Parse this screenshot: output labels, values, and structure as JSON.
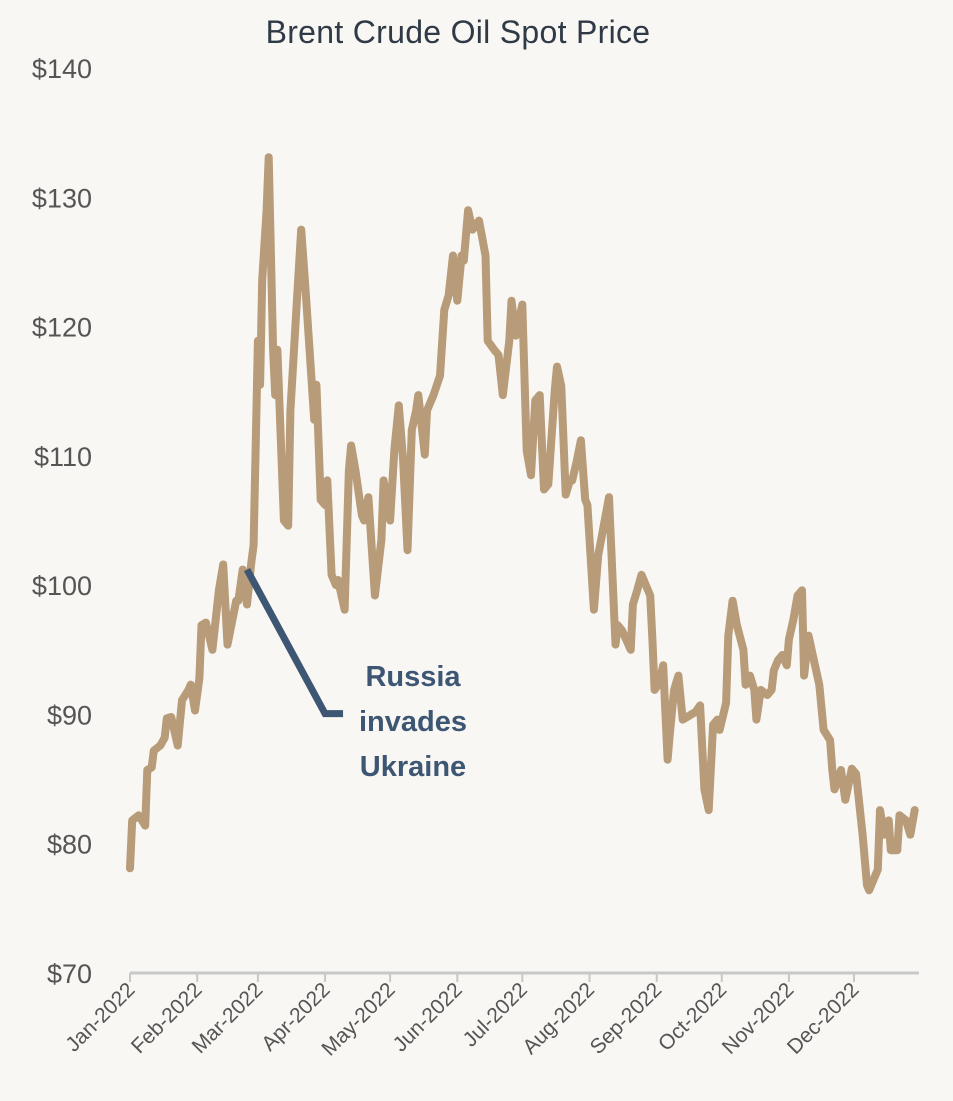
{
  "chart_data": {
    "type": "line",
    "title": "Brent Crude Oil Spot Price",
    "xlabel": "",
    "ylabel": "",
    "ylim": [
      70,
      140
    ],
    "xlim": [
      "2022-01-01",
      "2022-12-31"
    ],
    "grid": false,
    "y_ticks": [
      "$70",
      "$80",
      "$90",
      "$100",
      "$110",
      "$120",
      "$130",
      "$140"
    ],
    "y_tick_values": [
      70,
      80,
      90,
      100,
      110,
      120,
      130,
      140
    ],
    "x_ticks": [
      "Jan-2022",
      "Feb-2022",
      "Mar-2022",
      "Apr-2022",
      "May-2022",
      "Jun-2022",
      "Jul-2022",
      "Aug-2022",
      "Sep-2022",
      "Oct-2022",
      "Nov-2022",
      "Dec-2022"
    ],
    "x_tick_dates": [
      "2022-01-01",
      "2022-02-01",
      "2022-03-01",
      "2022-04-01",
      "2022-05-01",
      "2022-06-01",
      "2022-07-01",
      "2022-08-01",
      "2022-09-01",
      "2022-10-01",
      "2022-11-01",
      "2022-12-01"
    ],
    "line_color": "#b89b78",
    "annotation_color": "#3d5673",
    "annotation": {
      "text_lines": [
        "Russia",
        "invades",
        "Ukraine"
      ],
      "date": "2022-02-24",
      "value": 101.2
    },
    "series": [
      {
        "x": [
          "2022-01-01",
          "2022-01-02",
          "2022-01-05",
          "2022-01-08",
          "2022-01-09",
          "2022-01-11",
          "2022-01-12",
          "2022-01-15",
          "2022-01-17",
          "2022-01-18",
          "2022-01-20",
          "2022-01-23",
          "2022-01-25",
          "2022-01-28",
          "2022-01-29",
          "2022-01-31",
          "2022-02-02",
          "2022-02-03",
          "2022-02-05",
          "2022-02-08",
          "2022-02-11",
          "2022-02-13",
          "2022-02-15",
          "2022-02-19",
          "2022-02-20",
          "2022-02-22",
          "2022-02-24",
          "2022-02-26",
          "2022-02-27",
          "2022-03-01",
          "2022-03-02",
          "2022-03-03",
          "2022-03-05",
          "2022-03-06",
          "2022-03-08",
          "2022-03-09",
          "2022-03-10",
          "2022-03-13",
          "2022-03-15",
          "2022-03-16",
          "2022-03-19",
          "2022-03-21",
          "2022-03-23",
          "2022-03-27",
          "2022-03-28",
          "2022-03-30",
          "2022-04-01",
          "2022-04-02",
          "2022-04-04",
          "2022-04-06",
          "2022-04-07",
          "2022-04-10",
          "2022-04-12",
          "2022-04-13",
          "2022-04-15",
          "2022-04-18",
          "2022-04-19",
          "2022-04-21",
          "2022-04-24",
          "2022-04-27",
          "2022-04-28",
          "2022-05-01",
          "2022-05-03",
          "2022-05-05",
          "2022-05-07",
          "2022-05-09",
          "2022-05-11",
          "2022-05-13",
          "2022-05-14",
          "2022-05-17",
          "2022-05-18",
          "2022-05-21",
          "2022-05-24",
          "2022-05-26",
          "2022-05-28",
          "2022-05-30",
          "2022-06-01",
          "2022-06-03",
          "2022-06-04",
          "2022-06-06",
          "2022-06-08",
          "2022-06-11",
          "2022-06-14",
          "2022-06-15",
          "2022-06-18",
          "2022-06-20",
          "2022-06-22",
          "2022-06-25",
          "2022-06-26",
          "2022-06-28",
          "2022-07-01",
          "2022-07-03",
          "2022-07-05",
          "2022-07-07",
          "2022-07-09",
          "2022-07-11",
          "2022-07-13",
          "2022-07-16",
          "2022-07-17",
          "2022-07-19",
          "2022-07-21",
          "2022-07-23",
          "2022-07-24",
          "2022-07-26",
          "2022-07-28",
          "2022-07-30",
          "2022-07-31",
          "2022-08-03",
          "2022-08-05",
          "2022-08-08",
          "2022-08-10",
          "2022-08-13",
          "2022-08-14",
          "2022-08-16",
          "2022-08-20",
          "2022-08-21",
          "2022-08-23",
          "2022-08-25",
          "2022-08-29",
          "2022-08-30",
          "2022-08-31",
          "2022-09-02",
          "2022-09-04",
          "2022-09-06",
          "2022-09-07",
          "2022-09-09",
          "2022-09-11",
          "2022-09-13",
          "2022-09-15",
          "2022-09-19",
          "2022-09-21",
          "2022-09-23",
          "2022-09-25",
          "2022-09-27",
          "2022-09-29",
          "2022-09-30",
          "2022-10-03",
          "2022-10-04",
          "2022-10-06",
          "2022-10-08",
          "2022-10-11",
          "2022-10-12",
          "2022-10-14",
          "2022-10-16",
          "2022-10-17",
          "2022-10-19",
          "2022-10-22",
          "2022-10-24",
          "2022-10-25",
          "2022-10-27",
          "2022-10-29",
          "2022-10-31",
          "2022-11-01",
          "2022-11-03",
          "2022-11-05",
          "2022-11-07",
          "2022-11-08",
          "2022-11-10",
          "2022-11-13",
          "2022-11-15",
          "2022-11-17",
          "2022-11-20",
          "2022-11-21",
          "2022-11-22",
          "2022-11-25",
          "2022-11-27",
          "2022-11-28",
          "2022-11-30",
          "2022-12-02",
          "2022-12-05",
          "2022-12-07",
          "2022-12-08",
          "2022-12-12",
          "2022-12-13",
          "2022-12-15",
          "2022-12-17",
          "2022-12-18",
          "2022-12-21",
          "2022-12-22",
          "2022-12-25",
          "2022-12-27",
          "2022-12-29"
        ],
        "values": [
          78.1,
          81.8,
          82.2,
          81.4,
          85.7,
          85.9,
          87.2,
          87.6,
          88.2,
          89.7,
          89.8,
          87.6,
          91.1,
          91.9,
          92.3,
          90.3,
          92.8,
          96.9,
          97.1,
          95.0,
          99.6,
          101.6,
          95.4,
          98.8,
          98.8,
          101.2,
          98.5,
          101.8,
          103.1,
          118.9,
          115.5,
          123.6,
          129.0,
          133.1,
          118.2,
          114.7,
          118.2,
          105.0,
          104.6,
          113.5,
          122.0,
          127.5,
          122.8,
          112.8,
          115.5,
          106.6,
          106.2,
          108.1,
          100.8,
          100.0,
          100.4,
          98.1,
          108.9,
          110.8,
          108.9,
          105.4,
          105.0,
          106.8,
          99.2,
          103.5,
          108.1,
          105.0,
          110.5,
          113.9,
          109.7,
          102.7,
          112.0,
          113.5,
          114.7,
          110.1,
          113.5,
          114.7,
          116.2,
          121.3,
          122.4,
          125.5,
          122.0,
          125.5,
          125.1,
          129.0,
          127.5,
          128.2,
          125.5,
          118.9,
          118.2,
          117.8,
          114.7,
          118.9,
          122.0,
          119.3,
          121.7,
          110.4,
          108.5,
          114.3,
          114.7,
          107.4,
          107.8,
          115.1,
          116.9,
          115.4,
          107.0,
          108.1,
          108.1,
          109.5,
          111.2,
          106.6,
          106.2,
          98.1,
          102.3,
          105.0,
          106.8,
          95.4,
          96.9,
          96.5,
          95.0,
          98.5,
          99.6,
          100.8,
          99.2,
          95.8,
          91.9,
          92.4,
          93.8,
          86.5,
          88.4,
          91.9,
          93.0,
          89.6,
          89.8,
          90.2,
          90.7,
          84.2,
          82.6,
          89.2,
          89.6,
          88.8,
          90.9,
          96.1,
          98.8,
          96.9,
          95.0,
          92.3,
          93.0,
          91.9,
          89.6,
          91.9,
          91.5,
          91.9,
          93.4,
          94.2,
          94.6,
          93.8,
          95.8,
          97.3,
          99.2,
          99.6,
          93.0,
          96.1,
          93.8,
          92.3,
          88.8,
          88.0,
          85.7,
          84.2,
          85.7,
          83.4,
          84.2,
          85.8,
          85.4,
          80.7,
          76.8,
          76.4,
          78.0,
          82.6,
          80.7,
          81.8,
          79.5,
          79.5,
          82.2,
          81.8,
          80.7,
          82.6
        ]
      }
    ]
  }
}
